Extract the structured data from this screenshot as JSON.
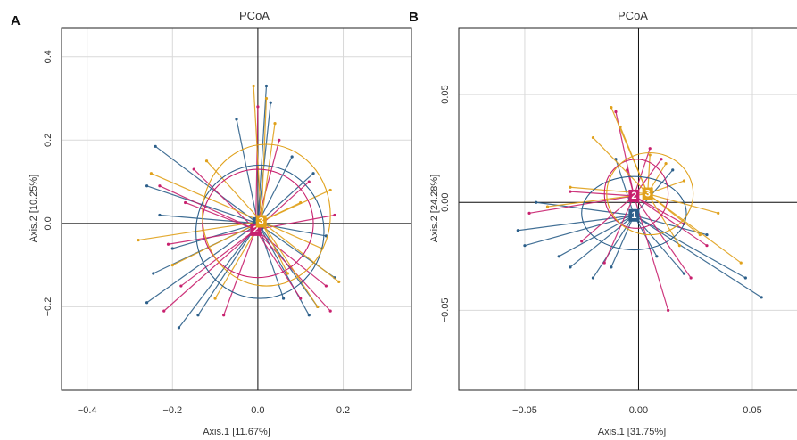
{
  "colors": {
    "1": "#2c5f8a",
    "2": "#c8206e",
    "3": "#e0a11b"
  },
  "chart_data": [
    {
      "type": "scatter",
      "panel": "A",
      "title": "PCoA",
      "xlabel": "Axis.1  [11.67%]",
      "ylabel": "Axis.2  [10.25%]",
      "xlim": [
        -0.46,
        0.36
      ],
      "ylim": [
        -0.4,
        0.47
      ],
      "xticks": [
        -0.4,
        -0.2,
        0.0,
        0.2
      ],
      "yticks": [
        -0.2,
        0.0,
        0.2,
        0.4
      ],
      "xtick_labels": [
        "−0.4",
        "−0.2",
        "0.0",
        "0.2"
      ],
      "ytick_labels": [
        "−0.2",
        "0.0",
        "0.2",
        "0.4"
      ],
      "grid": true,
      "groups": [
        {
          "name": "1",
          "centroid": [
            0.0,
            0.0
          ]
        },
        {
          "name": "2",
          "centroid": [
            -0.005,
            -0.015
          ]
        },
        {
          "name": "3",
          "centroid": [
            0.008,
            0.005
          ]
        }
      ],
      "ellipses": [
        {
          "group": "1",
          "center": [
            0.005,
            -0.02
          ],
          "rx": 0.15,
          "ry": 0.16
        },
        {
          "group": "2",
          "center": [
            0.0,
            0.0
          ],
          "rx": 0.13,
          "ry": 0.13
        },
        {
          "group": "3",
          "center": [
            0.02,
            0.02
          ],
          "rx": 0.15,
          "ry": 0.17
        }
      ],
      "points": [
        {
          "g": "1",
          "x": -0.24,
          "y": 0.185
        },
        {
          "g": "1",
          "x": -0.26,
          "y": 0.09
        },
        {
          "g": "1",
          "x": -0.245,
          "y": -0.12
        },
        {
          "g": "1",
          "x": -0.26,
          "y": -0.19
        },
        {
          "g": "1",
          "x": -0.185,
          "y": -0.25
        },
        {
          "g": "1",
          "x": 0.03,
          "y": 0.29
        },
        {
          "g": "1",
          "x": 0.02,
          "y": 0.33
        },
        {
          "g": "1",
          "x": 0.08,
          "y": 0.16
        },
        {
          "g": "1",
          "x": 0.13,
          "y": 0.12
        },
        {
          "g": "1",
          "x": 0.18,
          "y": -0.13
        },
        {
          "g": "1",
          "x": 0.14,
          "y": -0.2
        },
        {
          "g": "1",
          "x": 0.12,
          "y": -0.22
        },
        {
          "g": "1",
          "x": -0.2,
          "y": -0.06
        },
        {
          "g": "1",
          "x": -0.05,
          "y": 0.25
        },
        {
          "g": "1",
          "x": 0.16,
          "y": -0.03
        },
        {
          "g": "1",
          "x": -0.23,
          "y": 0.02
        },
        {
          "g": "1",
          "x": -0.14,
          "y": -0.22
        },
        {
          "g": "1",
          "x": 0.06,
          "y": -0.18
        },
        {
          "g": "2",
          "x": -0.23,
          "y": 0.09
        },
        {
          "g": "2",
          "x": -0.22,
          "y": -0.21
        },
        {
          "g": "2",
          "x": -0.18,
          "y": -0.15
        },
        {
          "g": "2",
          "x": 0.0,
          "y": 0.28
        },
        {
          "g": "2",
          "x": 0.17,
          "y": -0.21
        },
        {
          "g": "2",
          "x": 0.16,
          "y": -0.15
        },
        {
          "g": "2",
          "x": 0.05,
          "y": 0.2
        },
        {
          "g": "2",
          "x": -0.17,
          "y": 0.05
        },
        {
          "g": "2",
          "x": 0.1,
          "y": -0.18
        },
        {
          "g": "2",
          "x": -0.08,
          "y": -0.22
        },
        {
          "g": "2",
          "x": 0.12,
          "y": 0.1
        },
        {
          "g": "2",
          "x": -0.15,
          "y": 0.13
        },
        {
          "g": "2",
          "x": 0.18,
          "y": 0.02
        },
        {
          "g": "2",
          "x": -0.21,
          "y": -0.05
        },
        {
          "g": "3",
          "x": -0.28,
          "y": -0.04
        },
        {
          "g": "3",
          "x": -0.25,
          "y": 0.12
        },
        {
          "g": "3",
          "x": -0.01,
          "y": 0.33
        },
        {
          "g": "3",
          "x": 0.02,
          "y": 0.3
        },
        {
          "g": "3",
          "x": 0.19,
          "y": -0.14
        },
        {
          "g": "3",
          "x": 0.15,
          "y": -0.06
        },
        {
          "g": "3",
          "x": 0.1,
          "y": 0.05
        },
        {
          "g": "3",
          "x": 0.07,
          "y": -0.12
        },
        {
          "g": "3",
          "x": -0.12,
          "y": 0.15
        },
        {
          "g": "3",
          "x": 0.17,
          "y": 0.08
        },
        {
          "g": "3",
          "x": -0.2,
          "y": -0.1
        },
        {
          "g": "3",
          "x": 0.04,
          "y": 0.24
        },
        {
          "g": "3",
          "x": 0.14,
          "y": -0.2
        },
        {
          "g": "3",
          "x": -0.1,
          "y": -0.18
        }
      ]
    },
    {
      "type": "scatter",
      "panel": "B",
      "title": "PCoA",
      "xlabel": "Axis.1  [31.75%]",
      "ylabel": "Axis.2  [24.28%]",
      "xlim": [
        -0.079,
        0.07
      ],
      "ylim": [
        -0.087,
        0.081
      ],
      "xticks": [
        -0.05,
        0.0,
        0.05
      ],
      "yticks": [
        -0.05,
        0.0,
        0.05
      ],
      "xtick_labels": [
        "−0.05",
        "0.00",
        "0.05"
      ],
      "ytick_labels": [
        "−0.05",
        "0.00",
        "0.05"
      ],
      "grid": true,
      "groups": [
        {
          "name": "1",
          "centroid": [
            -0.002,
            -0.006
          ]
        },
        {
          "name": "2",
          "centroid": [
            -0.002,
            0.003
          ]
        },
        {
          "name": "3",
          "centroid": [
            0.004,
            0.004
          ]
        }
      ],
      "ellipses": [
        {
          "group": "1",
          "center": [
            -0.002,
            -0.005
          ],
          "rx": 0.023,
          "ry": 0.017
        },
        {
          "group": "2",
          "center": [
            -0.001,
            0.004
          ],
          "rx": 0.014,
          "ry": 0.016
        },
        {
          "group": "3",
          "center": [
            0.005,
            0.004
          ],
          "rx": 0.019,
          "ry": 0.019
        }
      ],
      "points": [
        {
          "g": "1",
          "x": -0.053,
          "y": -0.013
        },
        {
          "g": "1",
          "x": -0.05,
          "y": -0.02
        },
        {
          "g": "1",
          "x": -0.02,
          "y": -0.035
        },
        {
          "g": "1",
          "x": 0.054,
          "y": -0.044
        },
        {
          "g": "1",
          "x": 0.047,
          "y": -0.035
        },
        {
          "g": "1",
          "x": 0.02,
          "y": -0.033
        },
        {
          "g": "1",
          "x": -0.03,
          "y": -0.03
        },
        {
          "g": "1",
          "x": -0.045,
          "y": 0.0
        },
        {
          "g": "1",
          "x": -0.01,
          "y": 0.02
        },
        {
          "g": "1",
          "x": 0.015,
          "y": 0.015
        },
        {
          "g": "1",
          "x": -0.035,
          "y": -0.025
        },
        {
          "g": "1",
          "x": 0.03,
          "y": -0.015
        },
        {
          "g": "1",
          "x": -0.012,
          "y": -0.03
        },
        {
          "g": "1",
          "x": 0.008,
          "y": -0.025
        },
        {
          "g": "2",
          "x": -0.048,
          "y": -0.005
        },
        {
          "g": "2",
          "x": 0.013,
          "y": -0.05
        },
        {
          "g": "2",
          "x": 0.023,
          "y": -0.035
        },
        {
          "g": "2",
          "x": -0.01,
          "y": 0.042
        },
        {
          "g": "2",
          "x": 0.01,
          "y": 0.02
        },
        {
          "g": "2",
          "x": -0.025,
          "y": -0.018
        },
        {
          "g": "2",
          "x": 0.02,
          "y": -0.01
        },
        {
          "g": "2",
          "x": -0.03,
          "y": 0.005
        },
        {
          "g": "2",
          "x": 0.005,
          "y": 0.025
        },
        {
          "g": "2",
          "x": -0.015,
          "y": -0.028
        },
        {
          "g": "2",
          "x": 0.03,
          "y": -0.02
        },
        {
          "g": "2",
          "x": -0.005,
          "y": 0.015
        },
        {
          "g": "3",
          "x": -0.03,
          "y": 0.007
        },
        {
          "g": "3",
          "x": -0.012,
          "y": 0.044
        },
        {
          "g": "3",
          "x": 0.02,
          "y": 0.01
        },
        {
          "g": "3",
          "x": 0.045,
          "y": -0.028
        },
        {
          "g": "3",
          "x": 0.027,
          "y": -0.015
        },
        {
          "g": "3",
          "x": 0.005,
          "y": 0.022
        },
        {
          "g": "3",
          "x": -0.04,
          "y": -0.002
        },
        {
          "g": "3",
          "x": 0.018,
          "y": -0.02
        },
        {
          "g": "3",
          "x": -0.02,
          "y": 0.03
        },
        {
          "g": "3",
          "x": 0.035,
          "y": -0.005
        },
        {
          "g": "3",
          "x": -0.008,
          "y": 0.035
        },
        {
          "g": "3",
          "x": 0.012,
          "y": 0.018
        }
      ]
    }
  ]
}
